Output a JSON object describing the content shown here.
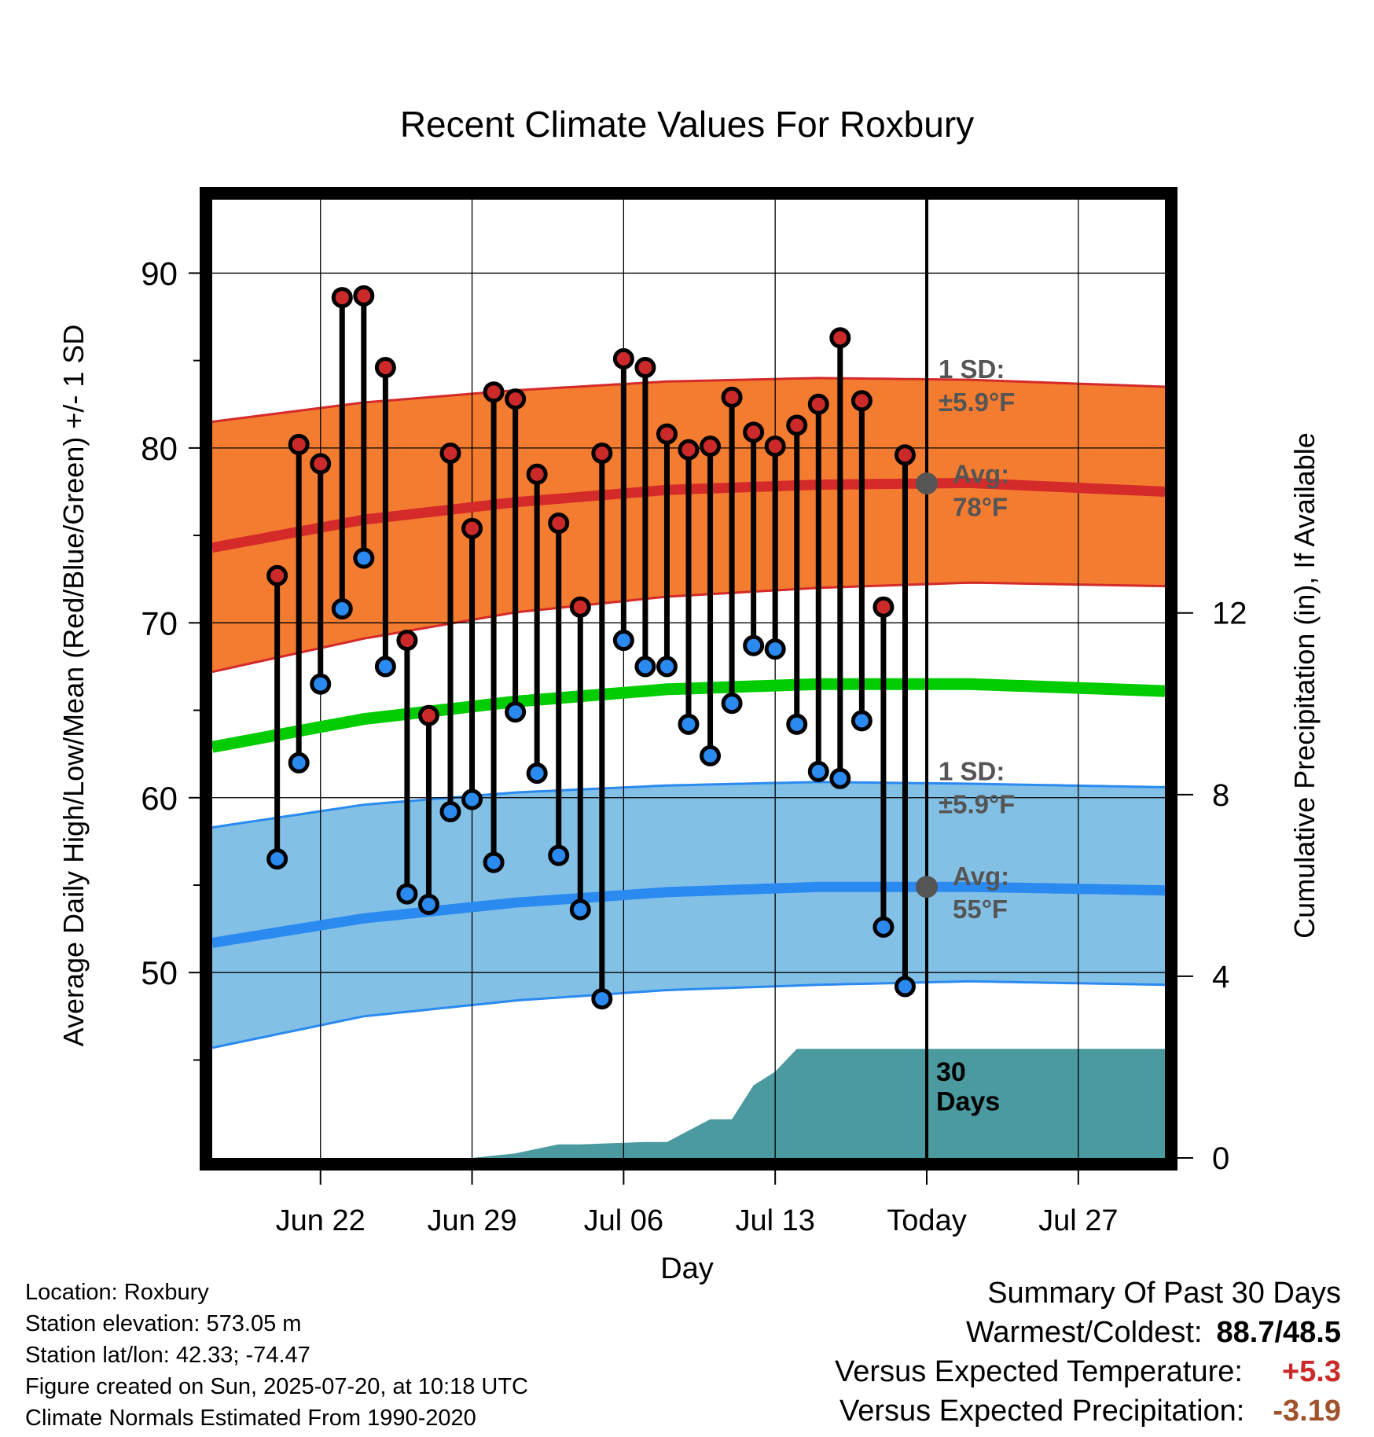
{
  "chart_data": {
    "type": "line",
    "title": "Recent Climate Values For Roxbury",
    "xlabel": "Day",
    "ylabel": "Average Daily High/Low/Mean (Red/Blue/Green) +/- 1 SD",
    "y2label": "Cumulative Precipitation (in), If Available",
    "ylim": [
      39.4,
      94.2
    ],
    "y2lim": [
      0,
      21.1
    ],
    "yticks": [
      50,
      60,
      70,
      80,
      90
    ],
    "y2ticks": [
      0,
      4,
      8,
      12
    ],
    "xlim": [
      "2025-06-17",
      "2025-07-31"
    ],
    "xticks": [
      {
        "date": "2025-06-22",
        "label": "Jun 22"
      },
      {
        "date": "2025-06-29",
        "label": "Jun 29"
      },
      {
        "date": "2025-07-06",
        "label": "Jul 06"
      },
      {
        "date": "2025-07-13",
        "label": "Jul 13"
      },
      {
        "date": "2025-07-20",
        "label": "Today"
      },
      {
        "date": "2025-07-27",
        "label": "Jul 27"
      }
    ],
    "grid": true,
    "today": "2025-07-20",
    "today_label": [
      "30",
      "Days"
    ],
    "colors": {
      "high_band": "#f47c30",
      "high_line": "#d42a2a",
      "low_band": "#82c0e6",
      "low_line": "#2a8af0",
      "mean_line": "#00cc00",
      "precip": "#4a9aa0",
      "high_marker": "#cc2a2a",
      "low_marker": "#2a8af0",
      "avg_marker": "#555555",
      "annotation": "#555555"
    },
    "normals_x": [
      "2025-06-17",
      "2025-06-24",
      "2025-07-01",
      "2025-07-08",
      "2025-07-15",
      "2025-07-22",
      "2025-07-31"
    ],
    "normal_high": [
      74.3,
      75.9,
      76.9,
      77.6,
      77.9,
      78.0,
      77.5
    ],
    "normal_high_upper": [
      81.5,
      82.6,
      83.3,
      83.8,
      84.0,
      83.9,
      83.5
    ],
    "normal_high_lower": [
      67.2,
      69.1,
      70.6,
      71.5,
      72.0,
      72.3,
      72.1
    ],
    "normal_mean": [
      62.9,
      64.5,
      65.5,
      66.2,
      66.5,
      66.5,
      66.1
    ],
    "normal_low": [
      51.7,
      53.1,
      54.0,
      54.6,
      54.9,
      54.9,
      54.7
    ],
    "normal_low_upper": [
      58.3,
      59.6,
      60.3,
      60.7,
      60.9,
      60.8,
      60.6
    ],
    "normal_low_lower": [
      45.7,
      47.5,
      48.4,
      49.0,
      49.3,
      49.5,
      49.3
    ],
    "annotations": [
      {
        "label1": "1 SD:",
        "label2": "±5.9°F",
        "at": [
          80,
          84
        ]
      },
      {
        "label1": "Avg:",
        "label2": "78°F",
        "at": [
          75,
          78
        ]
      },
      {
        "label1": "1 SD:",
        "label2": "±5.9°F",
        "at": [
          58,
          61
        ]
      },
      {
        "label1": "Avg:",
        "label2": "55°F",
        "at": [
          53,
          55
        ]
      }
    ],
    "series": [
      {
        "name": "High",
        "x": [
          "2025-06-20",
          "2025-06-21",
          "2025-06-22",
          "2025-06-23",
          "2025-06-24",
          "2025-06-25",
          "2025-06-26",
          "2025-06-27",
          "2025-06-28",
          "2025-06-29",
          "2025-06-30",
          "2025-07-01",
          "2025-07-02",
          "2025-07-03",
          "2025-07-04",
          "2025-07-05",
          "2025-07-06",
          "2025-07-07",
          "2025-07-08",
          "2025-07-09",
          "2025-07-10",
          "2025-07-11",
          "2025-07-12",
          "2025-07-13",
          "2025-07-14",
          "2025-07-15",
          "2025-07-16",
          "2025-07-17",
          "2025-07-18",
          "2025-07-19"
        ],
        "values": [
          72.7,
          80.2,
          79.1,
          88.6,
          88.7,
          84.6,
          69.0,
          64.7,
          79.7,
          75.4,
          83.2,
          82.8,
          78.5,
          75.7,
          70.9,
          79.7,
          85.1,
          84.6,
          80.8,
          79.9,
          80.1,
          82.9,
          80.9,
          80.1,
          81.3,
          82.5,
          86.3,
          82.7,
          70.9,
          79.6
        ]
      },
      {
        "name": "Low",
        "x": [
          "2025-06-20",
          "2025-06-21",
          "2025-06-22",
          "2025-06-23",
          "2025-06-24",
          "2025-06-25",
          "2025-06-26",
          "2025-06-27",
          "2025-06-28",
          "2025-06-29",
          "2025-06-30",
          "2025-07-01",
          "2025-07-02",
          "2025-07-03",
          "2025-07-04",
          "2025-07-05",
          "2025-07-06",
          "2025-07-07",
          "2025-07-08",
          "2025-07-09",
          "2025-07-10",
          "2025-07-11",
          "2025-07-12",
          "2025-07-13",
          "2025-07-14",
          "2025-07-15",
          "2025-07-16",
          "2025-07-17",
          "2025-07-18",
          "2025-07-19"
        ],
        "values": [
          56.5,
          62.0,
          66.5,
          70.8,
          73.7,
          67.5,
          54.5,
          53.9,
          59.2,
          59.9,
          56.3,
          64.9,
          61.4,
          56.7,
          53.6,
          48.5,
          69.0,
          67.5,
          67.5,
          64.2,
          62.4,
          65.4,
          68.7,
          68.5,
          64.2,
          61.5,
          61.1,
          64.4,
          52.6,
          49.2
        ]
      }
    ],
    "precip": {
      "x": [
        "2025-06-17",
        "2025-06-29",
        "2025-06-30",
        "2025-07-01",
        "2025-07-02",
        "2025-07-03",
        "2025-07-04",
        "2025-07-07",
        "2025-07-08",
        "2025-07-09",
        "2025-07-10",
        "2025-07-11",
        "2025-07-12",
        "2025-07-13",
        "2025-07-14",
        "2025-07-20",
        "2025-07-31"
      ],
      "values": [
        0,
        0,
        0.05,
        0.1,
        0.2,
        0.3,
        0.3,
        0.35,
        0.35,
        0.6,
        0.85,
        0.85,
        1.6,
        1.9,
        2.4,
        2.4,
        2.4
      ]
    }
  },
  "info": {
    "location": "Location: Roxbury",
    "elevation": "Station elevation: 573.05 m",
    "latlon": "Station lat/lon: 42.33; -74.47",
    "created": "Figure created on Sun, 2025-07-20, at 10:18 UTC",
    "normals": "Climate Normals Estimated From 1990-2020"
  },
  "summary": {
    "heading": "Summary Of Past 30 Days",
    "warmest_label": "Warmest/Coldest:",
    "warmest_value": "88.7/48.5",
    "temp_label": "Versus Expected Temperature:",
    "temp_value": "+5.3",
    "temp_color": "#cc2a2a",
    "precip_label": "Versus Expected Precipitation:",
    "precip_value": "-3.19",
    "precip_color": "#a0522d"
  }
}
